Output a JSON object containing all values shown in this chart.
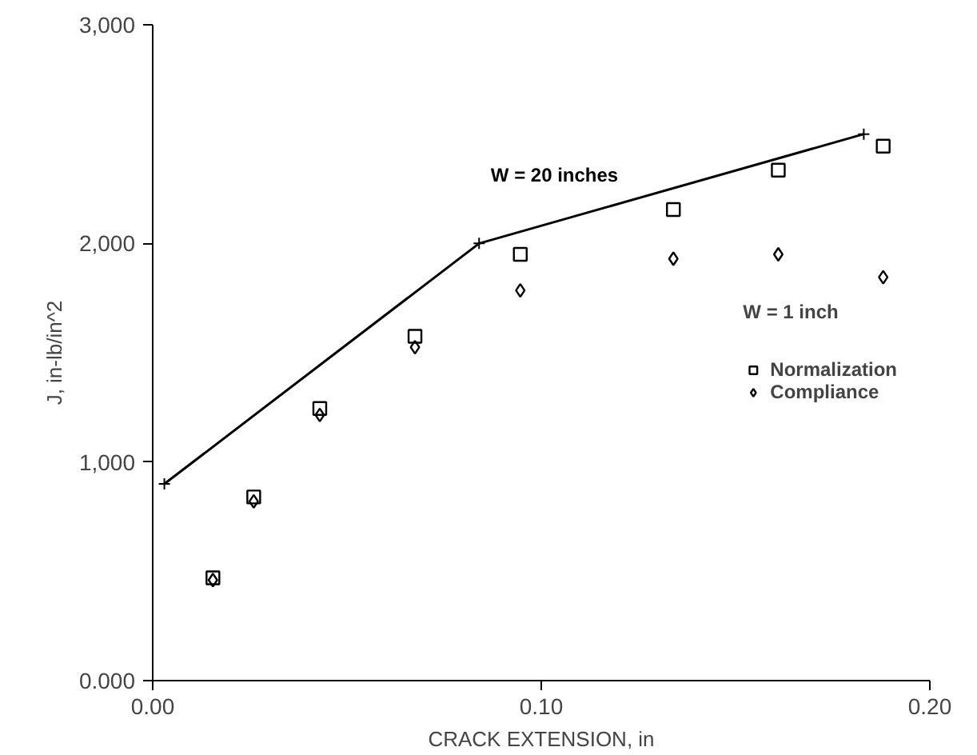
{
  "chart_data": {
    "type": "scatter",
    "xlabel": "CRACK EXTENSION, in",
    "ylabel": "J, in-lb/in^2",
    "xlim": [
      0,
      0.2
    ],
    "ylim": [
      0,
      3000
    ],
    "xticks": [
      {
        "value": 0,
        "label": "0.00"
      },
      {
        "value": 0.1,
        "label": "0.10"
      },
      {
        "value": 0.2,
        "label": "0.20"
      }
    ],
    "yticks": [
      {
        "value": 0,
        "label": "0.000"
      },
      {
        "value": 1000,
        "label": "1,000"
      },
      {
        "value": 2000,
        "label": "2,000"
      },
      {
        "value": 3000,
        "label": "3,000"
      }
    ],
    "grid": false,
    "legend": "right",
    "legend_title": "W = 1 inch",
    "series": [
      {
        "name": "W = 20 inches",
        "type": "line",
        "marker": "cross",
        "color": "#000000",
        "x": [
          0.003,
          0.084,
          0.183
        ],
        "values": [
          900,
          2000,
          2500
        ]
      },
      {
        "name": "Normalization",
        "marker": "square",
        "color": "#000000",
        "x": [
          0.0155,
          0.026,
          0.043,
          0.0675,
          0.0946,
          0.134,
          0.161,
          0.188
        ],
        "values": [
          470,
          840,
          1245,
          1575,
          1950,
          2155,
          2335,
          2445
        ]
      },
      {
        "name": "Compliance",
        "marker": "diamond",
        "color": "#000000",
        "x": [
          0.0155,
          0.026,
          0.043,
          0.0675,
          0.0946,
          0.134,
          0.161,
          0.188
        ],
        "values": [
          460,
          820,
          1215,
          1525,
          1785,
          1930,
          1950,
          1845
        ]
      }
    ]
  }
}
